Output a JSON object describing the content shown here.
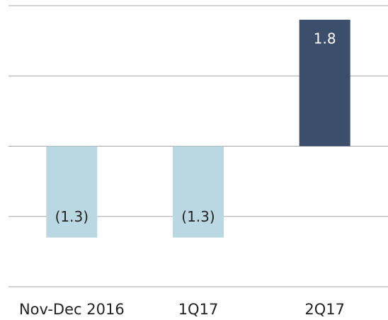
{
  "chart_data": {
    "type": "bar",
    "categories": [
      "Nov-Dec 2016",
      "1Q17",
      "2Q17"
    ],
    "values": [
      -1.3,
      -1.3,
      1.8
    ],
    "value_labels": [
      "(1.3)",
      "(1.3)",
      "1.8"
    ],
    "colors": [
      "#b9d8e2",
      "#b9d8e2",
      "#3b4e6b"
    ],
    "ylim": [
      -2,
      2
    ],
    "yticks": [
      -2,
      -1,
      0,
      1,
      2
    ],
    "grid": true
  }
}
